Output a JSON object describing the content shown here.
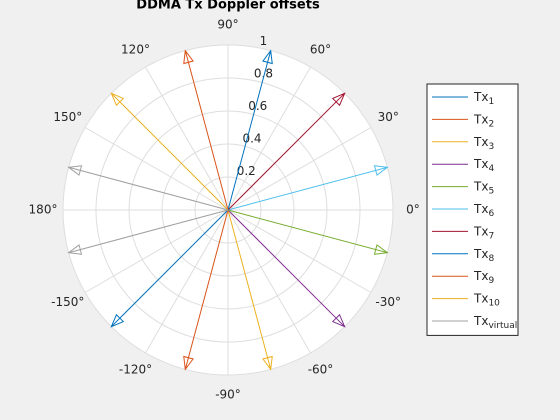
{
  "chart_data": {
    "type": "compass",
    "title": "DDMA Tx Doppler offsets",
    "rlim": [
      0,
      1
    ],
    "rticks": [
      0.2,
      0.4,
      0.6,
      0.8,
      1
    ],
    "rtick_angle": 80,
    "thetaticks": [
      {
        "value": 0,
        "label": "0°"
      },
      {
        "value": 30,
        "label": "30°"
      },
      {
        "value": 60,
        "label": "60°"
      },
      {
        "value": 90,
        "label": "90°"
      },
      {
        "value": 120,
        "label": "120°"
      },
      {
        "value": 150,
        "label": "150°"
      },
      {
        "value": 180,
        "label": "180°"
      },
      {
        "value": 210,
        "label": "-150°"
      },
      {
        "value": 240,
        "label": "-120°"
      },
      {
        "value": 270,
        "label": "-90°"
      },
      {
        "value": 300,
        "label": "-60°"
      },
      {
        "value": 330,
        "label": "-30°"
      }
    ],
    "grid": true,
    "series": [
      {
        "name": "Tx",
        "subscript": "1",
        "color": "#0072BD",
        "angles": [
          -135
        ],
        "magnitudes": [
          1
        ]
      },
      {
        "name": "Tx",
        "subscript": "2",
        "color": "#D95319",
        "angles": [
          -105
        ],
        "magnitudes": [
          1
        ]
      },
      {
        "name": "Tx",
        "subscript": "3",
        "color": "#EDB120",
        "angles": [
          -75
        ],
        "magnitudes": [
          1
        ]
      },
      {
        "name": "Tx",
        "subscript": "4",
        "color": "#7E2F8E",
        "angles": [
          -45
        ],
        "magnitudes": [
          1
        ]
      },
      {
        "name": "Tx",
        "subscript": "5",
        "color": "#77AC30",
        "angles": [
          -15
        ],
        "magnitudes": [
          1
        ]
      },
      {
        "name": "Tx",
        "subscript": "6",
        "color": "#4DBEEE",
        "angles": [
          15
        ],
        "magnitudes": [
          1
        ]
      },
      {
        "name": "Tx",
        "subscript": "7",
        "color": "#A2142F",
        "angles": [
          45
        ],
        "magnitudes": [
          1
        ]
      },
      {
        "name": "Tx",
        "subscript": "8",
        "color": "#0072BD",
        "angles": [
          75
        ],
        "magnitudes": [
          1
        ]
      },
      {
        "name": "Tx",
        "subscript": "9",
        "color": "#D95319",
        "angles": [
          105
        ],
        "magnitudes": [
          1
        ]
      },
      {
        "name": "Tx",
        "subscript": "10",
        "color": "#EDB120",
        "angles": [
          135
        ],
        "magnitudes": [
          1
        ]
      },
      {
        "name": "Tx",
        "subscript": "virtual",
        "color": "#A0A0A0",
        "angles": [
          165,
          -165
        ],
        "magnitudes": [
          1,
          1
        ]
      }
    ]
  }
}
